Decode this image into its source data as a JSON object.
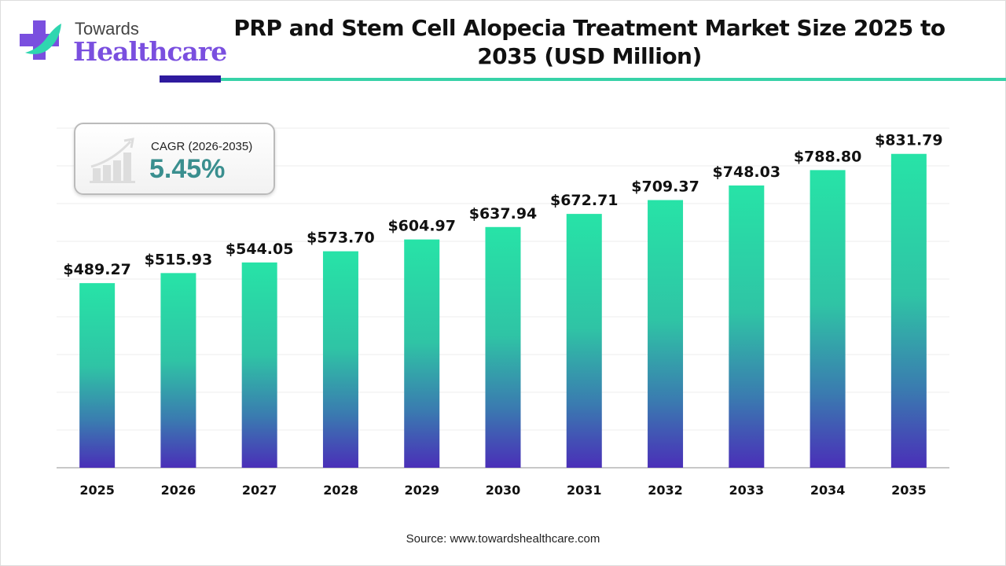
{
  "logo": {
    "line1": "Towards",
    "line2": "Healthcare"
  },
  "title": "PRP and Stem Cell Alopecia Treatment Market Size 2025 to 2035 (USD Million)",
  "cagr": {
    "label": "CAGR (2026-2035)",
    "value": "5.45%",
    "icon": "growth-chart-icon"
  },
  "source": "Source: www.towardshealthcare.com",
  "colors": {
    "bar_top": "#27e3a7",
    "bar_bottom": "#4a2fb8",
    "accent_dark": "#2e1a9e",
    "accent_teal": "#37d2a8",
    "cagr_value": "#3a8f8f"
  },
  "chart_data": {
    "type": "bar",
    "title": "PRP and Stem Cell Alopecia Treatment Market Size 2025 to 2035 (USD Million)",
    "categories": [
      "2025",
      "2026",
      "2027",
      "2028",
      "2029",
      "2030",
      "2031",
      "2032",
      "2033",
      "2034",
      "2035"
    ],
    "values": [
      489.27,
      515.93,
      544.05,
      573.7,
      604.97,
      637.94,
      672.71,
      709.37,
      748.03,
      788.8,
      831.79
    ],
    "data_labels": [
      "$489.27",
      "$515.93",
      "$544.05",
      "$573.70",
      "$604.97",
      "$637.94",
      "$672.71",
      "$709.37",
      "$748.03",
      "$788.80",
      "$831.79"
    ],
    "xlabel": "",
    "ylabel": "",
    "ylim": [
      0,
      900
    ],
    "grid": true,
    "y_axis_labels_shown": false
  }
}
